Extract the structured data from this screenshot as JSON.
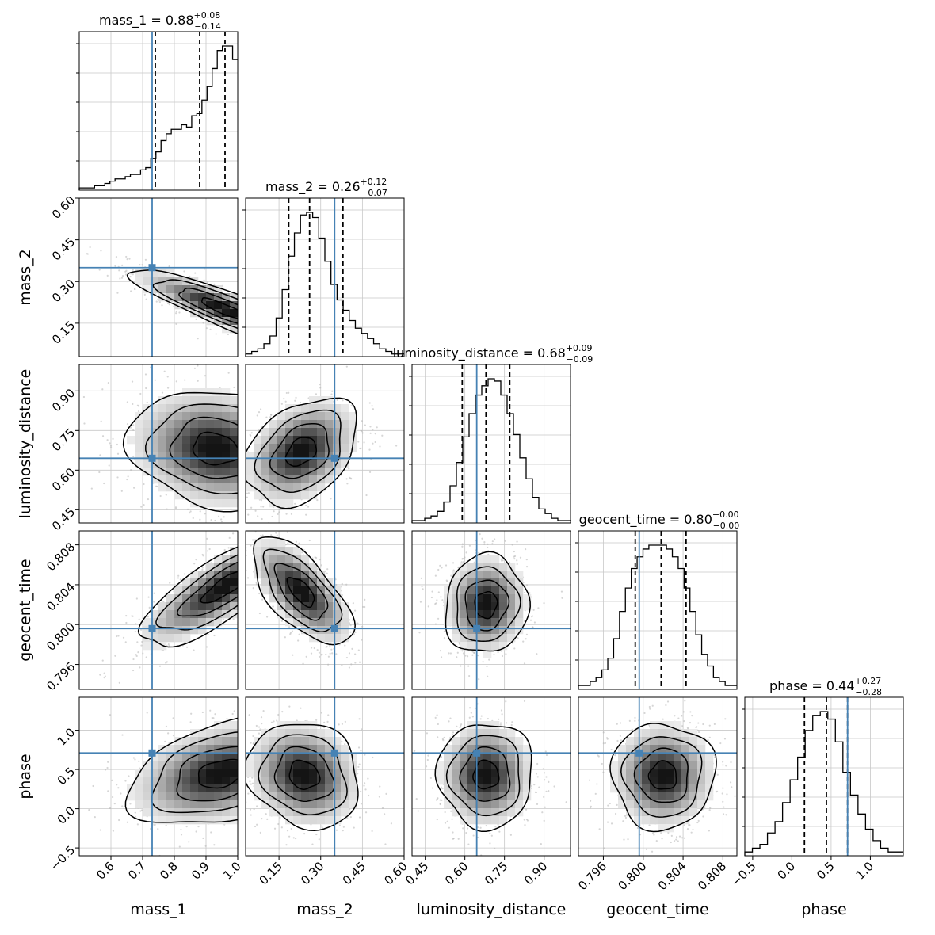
{
  "chart_data": {
    "type": "corner",
    "parameters": [
      {
        "name": "mass_1",
        "median": "0.88",
        "plus": "+0.08",
        "minus": "−0.14",
        "range": [
          0.5,
          1.0
        ],
        "ticks": [
          0.6,
          0.7,
          0.8,
          0.9,
          1.0
        ],
        "tick_labels": [
          "0.6",
          "0.7",
          "0.8",
          "0.9",
          "1.0"
        ],
        "quantiles": [
          0.74,
          0.88,
          0.96
        ],
        "truth": 0.73
      },
      {
        "name": "mass_2",
        "median": "0.26",
        "plus": "+0.12",
        "minus": "−0.07",
        "range": [
          0.03,
          0.6
        ],
        "ticks": [
          0.15,
          0.3,
          0.45,
          0.6
        ],
        "tick_labels": [
          "0.15",
          "0.30",
          "0.45",
          "0.60"
        ],
        "quantiles": [
          0.185,
          0.26,
          0.38
        ],
        "truth": 0.35
      },
      {
        "name": "luminosity_distance",
        "median": "0.68",
        "plus": "+0.09",
        "minus": "−0.09",
        "range": [
          0.4,
          1.0
        ],
        "ticks": [
          0.45,
          0.6,
          0.75,
          0.9
        ],
        "tick_labels": [
          "0.45",
          "0.60",
          "0.75",
          "0.90"
        ],
        "quantiles": [
          0.59,
          0.68,
          0.77
        ],
        "truth": 0.645
      },
      {
        "name": "geocent_time",
        "median": "0.80",
        "plus": "+0.00",
        "minus": "−0.00",
        "range": [
          0.7935,
          0.8094
        ],
        "ticks": [
          0.796,
          0.8,
          0.804,
          0.808
        ],
        "tick_labels": [
          "0.796",
          "0.800",
          "0.804",
          "0.808"
        ],
        "quantiles": [
          0.7992,
          0.8018,
          0.8043
        ],
        "truth": 0.7996
      },
      {
        "name": "phase",
        "median": "0.44",
        "plus": "+0.27",
        "minus": "−0.28",
        "range": [
          -0.6,
          1.42
        ],
        "ticks": [
          -0.5,
          0.0,
          0.5,
          1.0
        ],
        "tick_labels": [
          "−0.5",
          "0.0",
          "0.5",
          "1.0"
        ],
        "quantiles": [
          0.16,
          0.44,
          0.71
        ],
        "truth": 0.71
      }
    ],
    "histograms": [
      [
        1,
        1,
        1,
        2,
        2,
        3,
        4,
        5,
        5,
        6,
        7,
        7,
        9,
        10,
        14,
        17,
        22,
        25,
        27,
        27,
        29,
        28,
        33,
        34,
        40,
        46,
        54,
        62,
        64,
        64,
        58
      ],
      [
        1,
        2,
        3,
        5,
        8,
        15,
        26,
        39,
        48,
        55,
        56,
        54,
        46,
        37,
        28,
        22,
        18,
        14,
        11,
        9,
        7,
        5,
        3,
        2,
        1,
        1
      ],
      [
        1,
        1,
        2,
        3,
        5,
        9,
        16,
        26,
        37,
        47,
        55,
        59,
        62,
        61,
        55,
        47,
        38,
        28,
        19,
        11,
        6,
        4,
        2,
        1,
        1
      ],
      [
        1,
        1,
        2,
        3,
        5,
        8,
        13,
        20,
        26,
        31,
        34,
        36,
        37,
        37,
        37,
        36,
        34,
        31,
        26,
        20,
        14,
        9,
        6,
        3,
        2,
        1,
        1
      ],
      [
        1,
        2,
        3,
        6,
        9,
        14,
        20,
        26,
        33,
        37,
        38,
        36,
        30,
        22,
        16,
        11,
        7,
        4,
        2,
        1,
        1
      ]
    ],
    "joint_densities": [
      {
        "x": "mass_1",
        "y": "mass_2",
        "center": [
          0.96,
          0.2
        ],
        "sigma": [
          0.13,
          0.065
        ],
        "corr": -0.88
      },
      {
        "x": "mass_1",
        "y": "luminosity_distance",
        "center": [
          0.93,
          0.68
        ],
        "sigma": [
          0.12,
          0.1
        ],
        "corr": -0.15
      },
      {
        "x": "mass_2",
        "y": "luminosity_distance",
        "center": [
          0.23,
          0.67
        ],
        "sigma": [
          0.09,
          0.09
        ],
        "corr": 0.35
      },
      {
        "x": "mass_1",
        "y": "geocent_time",
        "center": [
          0.96,
          0.8038
        ],
        "sigma": [
          0.12,
          0.0027
        ],
        "corr": 0.82
      },
      {
        "x": "mass_2",
        "y": "geocent_time",
        "center": [
          0.23,
          0.8033
        ],
        "sigma": [
          0.08,
          0.0024
        ],
        "corr": -0.65
      },
      {
        "x": "luminosity_distance",
        "y": "geocent_time",
        "center": [
          0.68,
          0.802
        ],
        "sigma": [
          0.07,
          0.0022
        ],
        "corr": 0.05
      },
      {
        "x": "mass_1",
        "y": "phase",
        "center": [
          0.95,
          0.45
        ],
        "sigma": [
          0.13,
          0.3
        ],
        "corr": 0.35
      },
      {
        "x": "mass_2",
        "y": "phase",
        "center": [
          0.24,
          0.43
        ],
        "sigma": [
          0.09,
          0.3
        ],
        "corr": -0.15
      },
      {
        "x": "luminosity_distance",
        "y": "phase",
        "center": [
          0.68,
          0.43
        ],
        "sigma": [
          0.08,
          0.3
        ],
        "corr": 0.0
      },
      {
        "x": "geocent_time",
        "y": "phase",
        "center": [
          0.802,
          0.42
        ],
        "sigma": [
          0.0023,
          0.3
        ],
        "corr": 0.0
      }
    ],
    "grid": true,
    "truth_color": "#4682b4",
    "contour_color": "#000000",
    "scatter_color": "#b0b0b0"
  }
}
